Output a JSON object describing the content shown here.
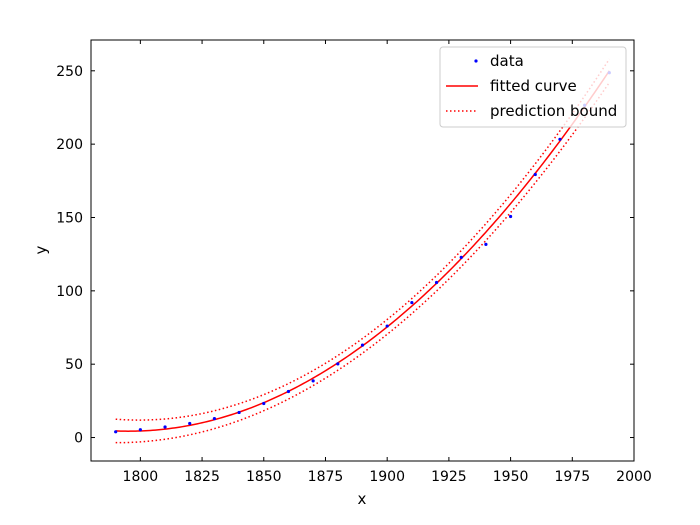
{
  "chart_data": {
    "type": "scatter",
    "title": "",
    "xlabel": "x",
    "ylabel": "y",
    "xlim": [
      1780,
      2000
    ],
    "ylim": [
      -16,
      271
    ],
    "grid": false,
    "xticks": [
      1800,
      1825,
      1850,
      1875,
      1900,
      1925,
      1950,
      1975,
      2000
    ],
    "yticks": [
      0,
      50,
      100,
      150,
      200,
      250
    ],
    "xtick_labels": [
      "1800",
      "1825",
      "1850",
      "1875",
      "1900",
      "1925",
      "1950",
      "1975",
      "2000"
    ],
    "ytick_labels": [
      "0",
      "50",
      "100",
      "150",
      "200",
      "250"
    ],
    "legend_position": "top-right",
    "colors": {
      "data": "#0000ff",
      "fit": "#ff0000",
      "bound": "#ff0000"
    },
    "series": [
      {
        "name": "data",
        "kind": "points",
        "x": [
          1790,
          1800,
          1810,
          1820,
          1830,
          1840,
          1850,
          1860,
          1870,
          1880,
          1890,
          1900,
          1910,
          1920,
          1930,
          1940,
          1950,
          1960,
          1970,
          1980,
          1990
        ],
        "y": [
          3.9,
          5.3,
          7.2,
          9.6,
          12.9,
          17.1,
          23.2,
          31.4,
          38.6,
          50.2,
          63.0,
          76.0,
          92.0,
          105.7,
          122.8,
          131.7,
          150.7,
          179.3,
          203.3,
          226.5,
          248.7
        ]
      },
      {
        "name": "fitted curve",
        "kind": "fit",
        "model": "quadratic",
        "x_range": [
          1790,
          1990
        ],
        "control": {
          "x": [
            1790,
            1890,
            1990
          ],
          "y": [
            4.5,
            62.5,
            250
          ]
        }
      },
      {
        "name": "prediction bound",
        "kind": "bounds",
        "half_width": {
          "x": [
            1790,
            1890,
            1990
          ],
          "y": [
            8,
            5,
            8
          ]
        }
      }
    ]
  }
}
